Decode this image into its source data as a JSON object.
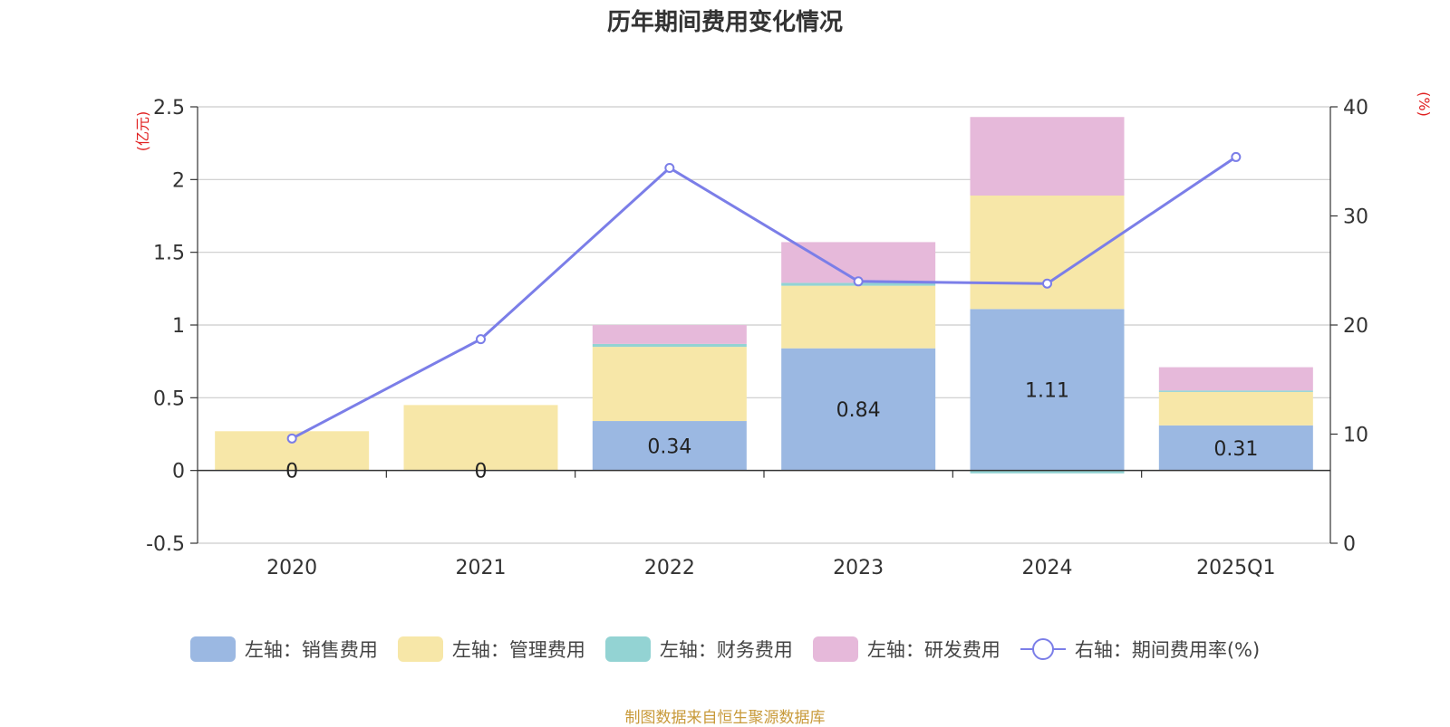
{
  "chart_data": {
    "type": "bar",
    "title": "历年期间费用变化情况",
    "categories": [
      "2020",
      "2021",
      "2022",
      "2023",
      "2024",
      "2025Q1"
    ],
    "left_axis": {
      "unit": "(亿元)",
      "ylim": [
        -0.5,
        2.5
      ],
      "ticks": [
        2.5,
        2,
        1.5,
        1,
        0.5,
        0,
        -0.5
      ],
      "tick_labels": [
        "2.5",
        "2",
        "1.5",
        "1",
        "0.5",
        "0",
        "-0.5"
      ]
    },
    "right_axis": {
      "unit": "(%)",
      "ylim": [
        0,
        40
      ],
      "ticks": [
        40,
        30,
        20,
        10,
        0
      ],
      "tick_labels": [
        "40",
        "30",
        "20",
        "10",
        "0"
      ]
    },
    "series": [
      {
        "name": "左轴：销售费用",
        "axis": "left",
        "stack": true,
        "color": "#9bb8e2",
        "values": [
          0,
          0,
          0.34,
          0.84,
          1.11,
          0.31
        ],
        "data_labels": [
          "0",
          "0",
          "0.34",
          "0.84",
          "1.11",
          "0.31"
        ]
      },
      {
        "name": "左轴：管理费用",
        "axis": "left",
        "stack": true,
        "color": "#f7e7a8",
        "values": [
          0.27,
          0.45,
          0.51,
          0.43,
          0.78,
          0.23
        ]
      },
      {
        "name": "左轴：财务费用",
        "axis": "left",
        "stack": true,
        "color": "#93d3d3",
        "values": [
          0,
          0,
          0.02,
          0.02,
          -0.02,
          0.01
        ]
      },
      {
        "name": "左轴：研发费用",
        "axis": "left",
        "stack": true,
        "color": "#e6b9da",
        "values": [
          0,
          0,
          0.13,
          0.28,
          0.54,
          0.16
        ]
      },
      {
        "name": "右轴：期间费用率(%)",
        "axis": "right",
        "type": "line",
        "color": "#7b7ee8",
        "values": [
          9.6,
          18.7,
          34.4,
          24.0,
          23.8,
          35.4
        ]
      }
    ],
    "legend_position": "bottom",
    "grid": true
  },
  "source_text": "制图数据来自恒生聚源数据库"
}
